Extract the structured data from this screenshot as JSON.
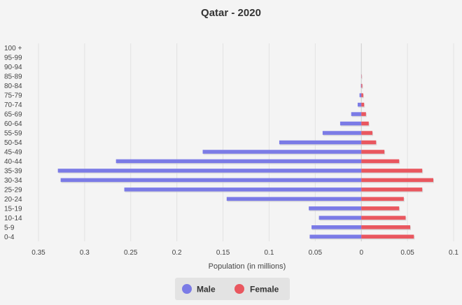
{
  "chart_data": {
    "type": "bar",
    "orientation": "horizontal-population-pyramid",
    "title": "Qatar - 2020",
    "xlabel": "Population (in millions)",
    "ylabel": "",
    "categories": [
      "0-4",
      "5-9",
      "10-14",
      "15-19",
      "20-24",
      "25-29",
      "30-34",
      "35-39",
      "40-44",
      "45-49",
      "50-54",
      "55-59",
      "60-64",
      "65-69",
      "70-74",
      "75-79",
      "80-84",
      "85-89",
      "90-94",
      "95-99",
      "100 +"
    ],
    "series": [
      {
        "name": "Male",
        "color": "#7b7be6",
        "values": [
          0.056,
          0.054,
          0.046,
          0.057,
          0.146,
          0.257,
          0.326,
          0.329,
          0.266,
          0.172,
          0.089,
          0.042,
          0.023,
          0.011,
          0.004,
          0.002,
          0.0005,
          0.0002,
          0,
          0,
          0
        ]
      },
      {
        "name": "Female",
        "color": "#e9575f",
        "values": [
          0.057,
          0.053,
          0.048,
          0.041,
          0.046,
          0.066,
          0.078,
          0.066,
          0.041,
          0.025,
          0.016,
          0.012,
          0.008,
          0.005,
          0.003,
          0.002,
          0.001,
          0.0003,
          0,
          0,
          0
        ]
      }
    ],
    "xlim": [
      -0.35,
      0.1
    ],
    "xticks": [
      -0.35,
      -0.3,
      -0.25,
      -0.2,
      -0.15,
      -0.1,
      -0.05,
      0,
      0.05,
      0.1
    ],
    "xtick_labels": [
      "0.35",
      "0.3",
      "0.25",
      "0.2",
      "0.15",
      "0.1",
      "0.05",
      "0",
      "0.05",
      "0.1"
    ],
    "grid": true,
    "legend": {
      "position": "bottom-center",
      "entries": [
        "Male",
        "Female"
      ]
    }
  }
}
